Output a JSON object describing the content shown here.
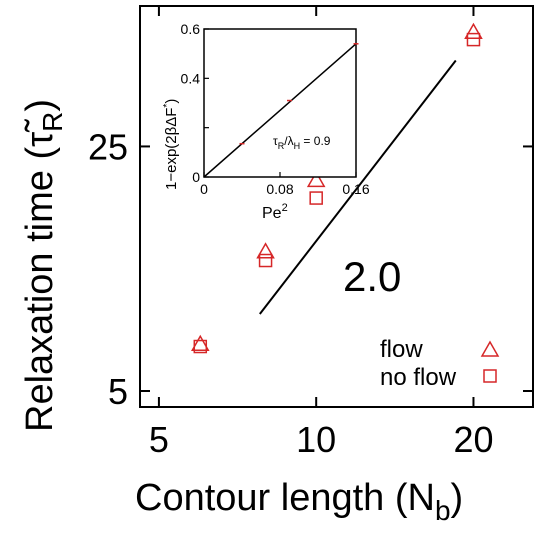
{
  "chart_data": {
    "type": "scatter",
    "xlabel": "Contour length (N",
    "xlabel_sub": "b",
    "xlabel_end": ")",
    "ylabel": "Relaxation time (τ̃",
    "ylabel_sub": "R",
    "ylabel_end": ")",
    "xscale": "log",
    "yscale": "log",
    "xticks": [
      5,
      10,
      20
    ],
    "yticks": [
      5,
      25
    ],
    "xlim": [
      4.6,
      26
    ],
    "ylim": [
      4.5,
      63
    ],
    "series": [
      {
        "name": "flow",
        "marker": "triangle",
        "color": "#d62728",
        "x": [
          6,
          8,
          10,
          20
        ],
        "y": [
          6.8,
          12.5,
          20.0,
          53.0
        ]
      },
      {
        "name": "no flow",
        "marker": "square",
        "color": "#d62728",
        "x": [
          6,
          8,
          10,
          20
        ],
        "y": [
          6.7,
          11.8,
          17.8,
          50.5
        ]
      }
    ],
    "slope_line": {
      "label": "2.0",
      "x": [
        7.8,
        18.5
      ],
      "y": [
        8.3,
        44.0
      ]
    },
    "legend": "bottom-right",
    "inset": {
      "type": "line",
      "xlabel": "Pe",
      "xlabel_sup": "2",
      "ylabel": "1−exp(2βΔF",
      "ylabel_sup": "*",
      "ylabel_end": ")",
      "xlim": [
        0,
        0.16
      ],
      "ylim": [
        0,
        0.6
      ],
      "xticks": [
        "0",
        "0.08",
        "0.16"
      ],
      "yticks": [
        "0",
        "0.2",
        "0.4",
        "0.6"
      ],
      "fit_label": "τ_R/λ_H = 0.9",
      "fit_label_main": "τ",
      "fit_label_sub1": "R",
      "fit_label_mid": "/λ",
      "fit_label_sub2": "H",
      "fit_label_end": " = 0.9",
      "line": {
        "x": [
          0,
          0.16
        ],
        "y": [
          0,
          0.54
        ]
      },
      "points": {
        "x": [
          0.04,
          0.09,
          0.16
        ],
        "y": [
          0.135,
          0.31,
          0.54
        ]
      },
      "point_color": "#d62728"
    }
  }
}
